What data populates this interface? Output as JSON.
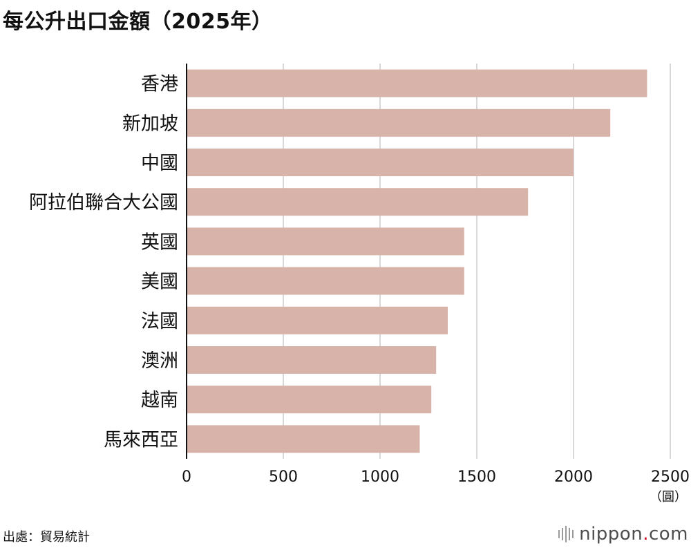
{
  "title": "每公升出口金額（2025年）",
  "source": "出處：貿易統計",
  "brand": {
    "name": "nippon",
    "dot": ".",
    "tld": "com"
  },
  "chart_data": {
    "type": "bar",
    "orientation": "horizontal",
    "title": "每公升出口金額（2025年）",
    "unit_label": "（圓）",
    "categories": [
      "香港",
      "新加坡",
      "中國",
      "阿拉伯聯合大公國",
      "英國",
      "美國",
      "法國",
      "澳洲",
      "越南",
      "馬來西亞"
    ],
    "values": [
      2380,
      2190,
      2000,
      1765,
      1435,
      1435,
      1350,
      1290,
      1265,
      1205
    ],
    "xlim": [
      0,
      2500
    ],
    "xticks": [
      0,
      500,
      1000,
      1500,
      2000,
      2500
    ],
    "grid": true,
    "bar_color": "#d8b3aa",
    "grid_color": "#cccccc"
  }
}
